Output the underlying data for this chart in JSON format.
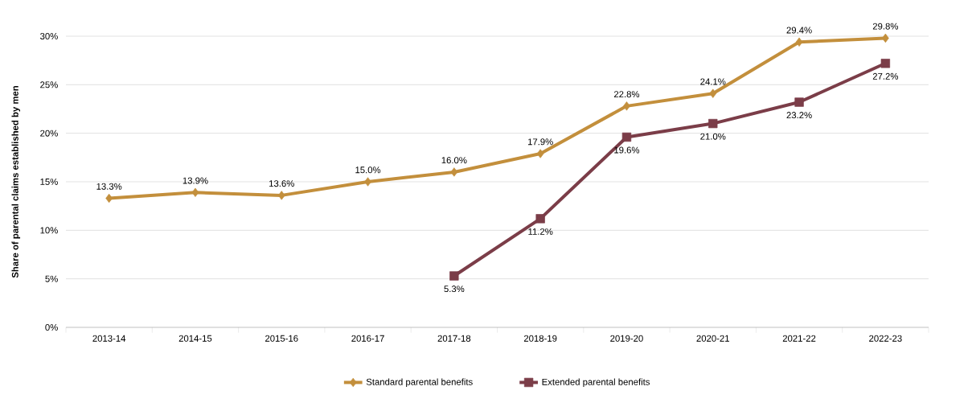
{
  "chart_data": {
    "type": "line",
    "ylabel": "Share of parental claims established by men",
    "categories": [
      "2013-14",
      "2014-15",
      "2015-16",
      "2016-17",
      "2017-18",
      "2018-19",
      "2019-20",
      "2020-21",
      "2021-22",
      "2022-23"
    ],
    "series": [
      {
        "name": "Standard parental benefits",
        "color": "#c38f3c",
        "marker": "diamond",
        "values": [
          13.3,
          13.9,
          13.6,
          15.0,
          16.0,
          17.9,
          22.8,
          24.1,
          29.4,
          29.8
        ],
        "value_labels": [
          "13.3%",
          "13.9%",
          "13.6%",
          "15.0%",
          "16.0%",
          "17.9%",
          "22.8%",
          "24.1%",
          "29.4%",
          "29.8%"
        ]
      },
      {
        "name": "Extended parental benefits",
        "color": "#7b3d48",
        "marker": "square",
        "values": [
          null,
          null,
          null,
          null,
          5.3,
          11.2,
          19.6,
          21.0,
          23.2,
          27.2
        ],
        "value_labels": [
          null,
          null,
          null,
          null,
          "5.3%",
          "11.2%",
          "19.6%",
          "21.0%",
          "23.2%",
          "27.2%"
        ]
      }
    ],
    "ylim": [
      0,
      30
    ],
    "yticks": [
      {
        "value": 0,
        "label": "0%"
      },
      {
        "value": 5,
        "label": "5%"
      },
      {
        "value": 10,
        "label": "10%"
      },
      {
        "value": 15,
        "label": "15%"
      },
      {
        "value": 20,
        "label": "20%"
      },
      {
        "value": 25,
        "label": "25%"
      },
      {
        "value": 30,
        "label": "30%"
      }
    ],
    "grid": "y",
    "legend": "bottom",
    "line_style": "solid"
  }
}
